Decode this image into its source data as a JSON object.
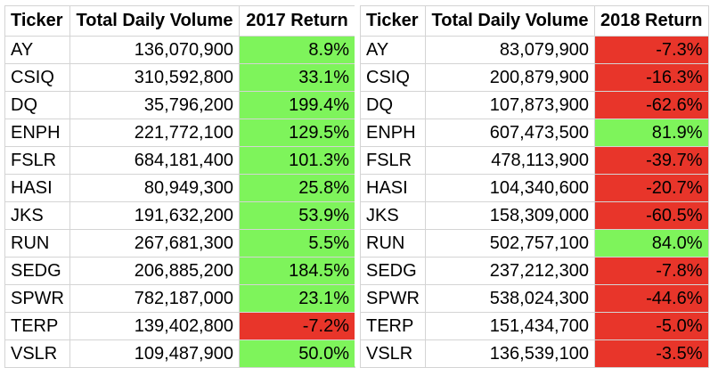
{
  "colors": {
    "positive": "#7ef45b",
    "negative": "#e8352a",
    "grid": "#d4d4d4"
  },
  "table_2017": {
    "headers": [
      "Ticker",
      "Total Daily Volume",
      "2017 Return"
    ],
    "rows": [
      {
        "ticker": "AY",
        "volume": "136,070,900",
        "return": "8.9%",
        "sign": "positive"
      },
      {
        "ticker": "CSIQ",
        "volume": "310,592,800",
        "return": "33.1%",
        "sign": "positive"
      },
      {
        "ticker": "DQ",
        "volume": "35,796,200",
        "return": "199.4%",
        "sign": "positive"
      },
      {
        "ticker": "ENPH",
        "volume": "221,772,100",
        "return": "129.5%",
        "sign": "positive"
      },
      {
        "ticker": "FSLR",
        "volume": "684,181,400",
        "return": "101.3%",
        "sign": "positive"
      },
      {
        "ticker": "HASI",
        "volume": "80,949,300",
        "return": "25.8%",
        "sign": "positive"
      },
      {
        "ticker": "JKS",
        "volume": "191,632,200",
        "return": "53.9%",
        "sign": "positive"
      },
      {
        "ticker": "RUN",
        "volume": "267,681,300",
        "return": "5.5%",
        "sign": "positive"
      },
      {
        "ticker": "SEDG",
        "volume": "206,885,200",
        "return": "184.5%",
        "sign": "positive"
      },
      {
        "ticker": "SPWR",
        "volume": "782,187,000",
        "return": "23.1%",
        "sign": "positive"
      },
      {
        "ticker": "TERP",
        "volume": "139,402,800",
        "return": "-7.2%",
        "sign": "negative"
      },
      {
        "ticker": "VSLR",
        "volume": "109,487,900",
        "return": "50.0%",
        "sign": "positive"
      }
    ]
  },
  "table_2018": {
    "headers": [
      "Ticker",
      "Total Daily Volume",
      "2018 Return"
    ],
    "rows": [
      {
        "ticker": "AY",
        "volume": "83,079,900",
        "return": "-7.3%",
        "sign": "negative"
      },
      {
        "ticker": "CSIQ",
        "volume": "200,879,900",
        "return": "-16.3%",
        "sign": "negative"
      },
      {
        "ticker": "DQ",
        "volume": "107,873,900",
        "return": "-62.6%",
        "sign": "negative"
      },
      {
        "ticker": "ENPH",
        "volume": "607,473,500",
        "return": "81.9%",
        "sign": "positive"
      },
      {
        "ticker": "FSLR",
        "volume": "478,113,900",
        "return": "-39.7%",
        "sign": "negative"
      },
      {
        "ticker": "HASI",
        "volume": "104,340,600",
        "return": "-20.7%",
        "sign": "negative"
      },
      {
        "ticker": "JKS",
        "volume": "158,309,000",
        "return": "-60.5%",
        "sign": "negative"
      },
      {
        "ticker": "RUN",
        "volume": "502,757,100",
        "return": "84.0%",
        "sign": "positive"
      },
      {
        "ticker": "SEDG",
        "volume": "237,212,300",
        "return": "-7.8%",
        "sign": "negative"
      },
      {
        "ticker": "SPWR",
        "volume": "538,024,300",
        "return": "-44.6%",
        "sign": "negative"
      },
      {
        "ticker": "TERP",
        "volume": "151,434,700",
        "return": "-5.0%",
        "sign": "negative"
      },
      {
        "ticker": "VSLR",
        "volume": "136,539,100",
        "return": "-3.5%",
        "sign": "negative"
      }
    ]
  }
}
